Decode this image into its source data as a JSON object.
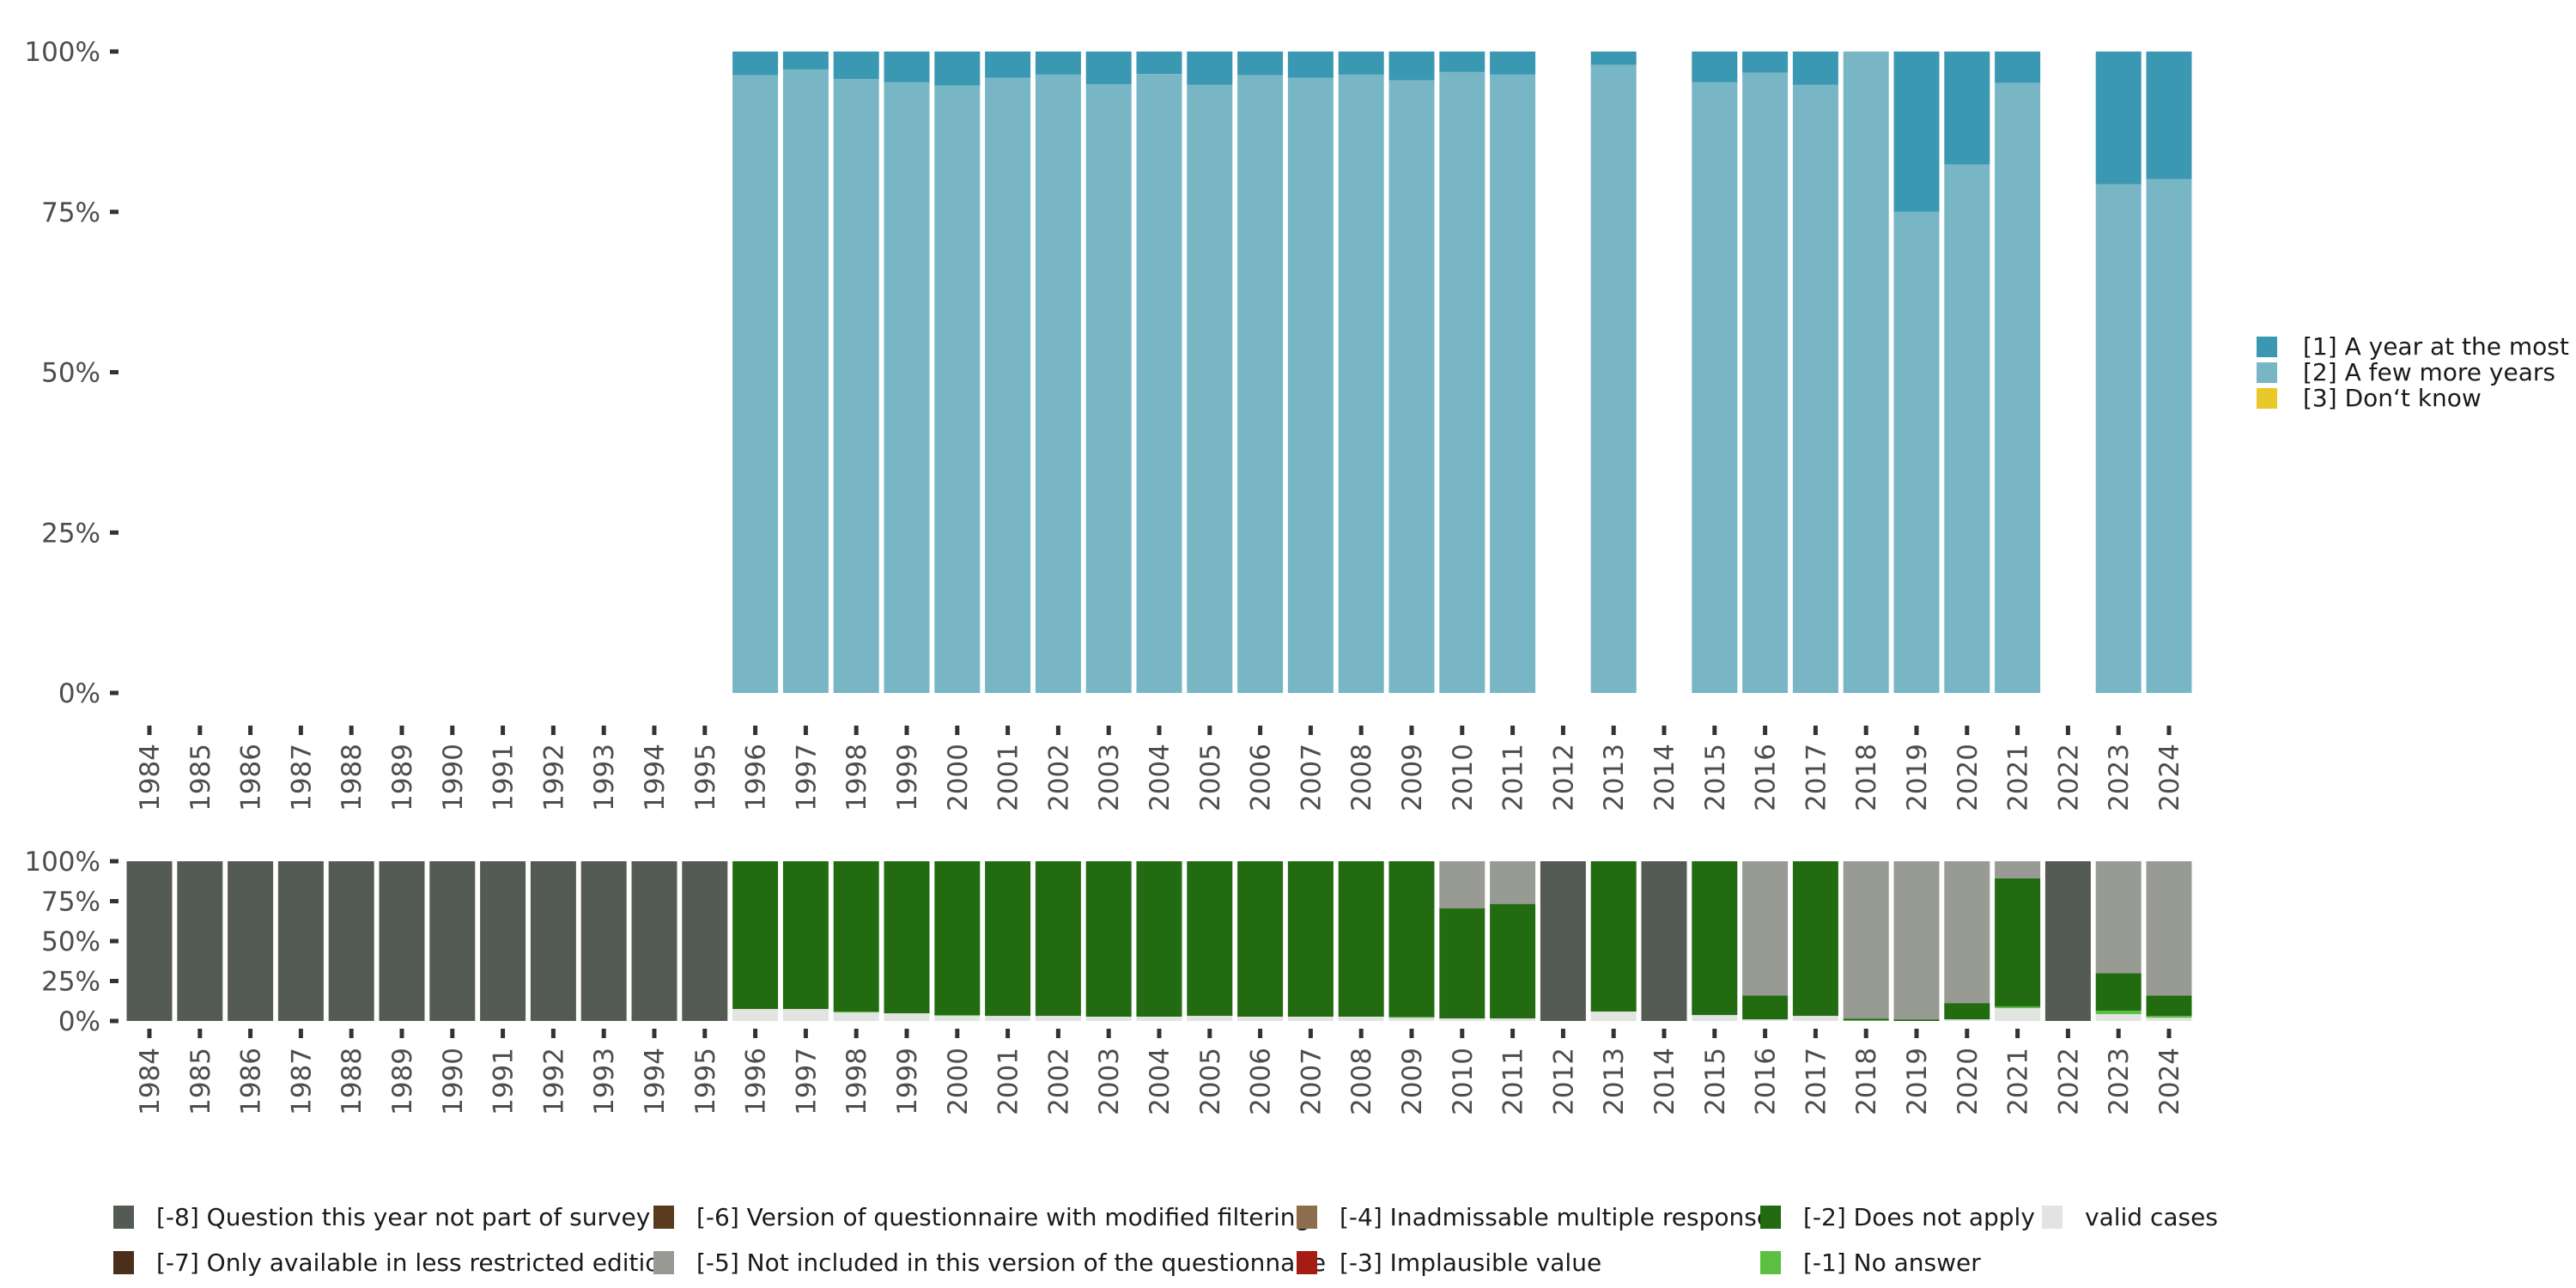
{
  "chart_data": [
    {
      "type": "bar",
      "stacked": true,
      "percent": true,
      "title": "",
      "xlabel": "",
      "ylabel": "",
      "ylim": [
        0,
        100
      ],
      "yticks": [
        "0%",
        "25%",
        "50%",
        "75%",
        "100%"
      ],
      "categories": [
        "1984",
        "1985",
        "1986",
        "1987",
        "1988",
        "1989",
        "1990",
        "1991",
        "1992",
        "1993",
        "1994",
        "1995",
        "1996",
        "1997",
        "1998",
        "1999",
        "2000",
        "2001",
        "2002",
        "2003",
        "2004",
        "2005",
        "2006",
        "2007",
        "2008",
        "2009",
        "2010",
        "2011",
        "2012",
        "2013",
        "2014",
        "2015",
        "2016",
        "2017",
        "2018",
        "2019",
        "2020",
        "2021",
        "2022",
        "2023",
        "2024"
      ],
      "legend_position": "right",
      "series": [
        {
          "name": "[2] A few more years",
          "color": "#79b6c5",
          "values": [
            null,
            null,
            null,
            null,
            null,
            null,
            null,
            null,
            null,
            null,
            null,
            null,
            96.3,
            97.2,
            95.7,
            95.2,
            94.7,
            95.9,
            96.4,
            94.9,
            96.5,
            94.8,
            96.3,
            95.9,
            96.4,
            95.5,
            96.8,
            96.4,
            null,
            97.9,
            null,
            95.2,
            96.7,
            94.8,
            100,
            75.0,
            82.4,
            95.1,
            null,
            79.3,
            80.1
          ]
        },
        {
          "name": "[1] A year at the most",
          "color": "#3b98b2",
          "values": [
            null,
            null,
            null,
            null,
            null,
            null,
            null,
            null,
            null,
            null,
            null,
            null,
            3.7,
            2.8,
            4.3,
            4.8,
            5.3,
            4.1,
            3.6,
            5.1,
            3.5,
            5.2,
            3.7,
            4.1,
            3.6,
            4.5,
            3.2,
            3.6,
            null,
            2.1,
            null,
            4.8,
            3.3,
            5.2,
            0,
            25.0,
            17.6,
            4.9,
            null,
            20.7,
            19.9
          ]
        },
        {
          "name": "[3] Don't know",
          "color": "#e9c82a",
          "values": [
            null,
            null,
            null,
            null,
            null,
            null,
            null,
            null,
            null,
            null,
            null,
            null,
            0,
            0,
            0,
            0,
            0,
            0,
            0,
            0,
            0,
            0,
            0,
            0,
            0,
            0,
            0,
            0,
            null,
            0,
            null,
            0,
            0,
            0,
            0,
            0,
            0,
            0,
            null,
            0,
            0
          ]
        }
      ]
    },
    {
      "type": "bar",
      "stacked": true,
      "percent": true,
      "title": "",
      "xlabel": "",
      "ylabel": "",
      "ylim": [
        0,
        100
      ],
      "yticks": [
        "0%",
        "25%",
        "50%",
        "75%",
        "100%"
      ],
      "categories": [
        "1984",
        "1985",
        "1986",
        "1987",
        "1988",
        "1989",
        "1990",
        "1991",
        "1992",
        "1993",
        "1994",
        "1995",
        "1996",
        "1997",
        "1998",
        "1999",
        "2000",
        "2001",
        "2002",
        "2003",
        "2004",
        "2005",
        "2006",
        "2007",
        "2008",
        "2009",
        "2010",
        "2011",
        "2012",
        "2013",
        "2014",
        "2015",
        "2016",
        "2017",
        "2018",
        "2019",
        "2020",
        "2021",
        "2022",
        "2023",
        "2024"
      ],
      "legend_position": "bottom",
      "series": [
        {
          "name": "valid cases",
          "color": "#e1e4e0",
          "values": [
            0,
            0,
            0,
            0,
            0,
            0,
            0,
            0,
            0,
            0,
            0,
            0,
            7.5,
            7.5,
            5.3,
            4.8,
            3.2,
            3.2,
            3.2,
            2.7,
            2.7,
            3.2,
            2.7,
            2.7,
            2.7,
            2.0,
            1.6,
            1.6,
            0,
            5.9,
            0,
            3.7,
            1.0,
            3.2,
            0,
            0,
            1.0,
            8.0,
            0,
            4.3,
            2.0
          ]
        },
        {
          "name": "[-1] No answer",
          "color": "#5bbf41",
          "values": [
            0,
            0,
            0,
            0,
            0,
            0,
            0,
            0,
            0,
            0,
            0,
            0,
            0,
            0,
            0.5,
            0,
            0.5,
            0,
            0,
            0,
            0,
            0,
            0,
            0,
            0,
            0.5,
            0,
            0,
            0,
            0,
            0,
            0,
            0,
            0,
            0.5,
            0,
            0,
            1.0,
            0,
            2.1,
            1.1
          ]
        },
        {
          "name": "[-2] Does not apply",
          "color": "#226b11",
          "values": [
            0,
            0,
            0,
            0,
            0,
            0,
            0,
            0,
            0,
            0,
            0,
            0,
            92.5,
            92.5,
            94.2,
            95.2,
            96.3,
            96.8,
            96.8,
            97.3,
            97.3,
            96.8,
            97.3,
            97.3,
            97.3,
            97.5,
            69.0,
            71.7,
            0,
            94.1,
            0,
            96.3,
            15.0,
            96.8,
            1.0,
            1.0,
            10.2,
            80.3,
            0,
            23.5,
            12.8
          ]
        },
        {
          "name": "[-3] Implausible value",
          "color": "#a51c15",
          "values": []
        },
        {
          "name": "[-4] Inadmissable multiple response",
          "color": "#8d6d4e",
          "values": []
        },
        {
          "name": "[-5] Not included in this version of the questionnaire",
          "color": "#989b94",
          "values": [
            0,
            0,
            0,
            0,
            0,
            0,
            0,
            0,
            0,
            0,
            0,
            0,
            0,
            0,
            0,
            0,
            0,
            0,
            0,
            0,
            0,
            0,
            0,
            0,
            0,
            0,
            29.4,
            26.7,
            0,
            0,
            0,
            0,
            84.0,
            0,
            98.5,
            99.0,
            88.8,
            10.7,
            0,
            70.1,
            84.1
          ]
        },
        {
          "name": "[-6] Version of questionnaire with modified filtering",
          "color": "#5a3a1c",
          "values": []
        },
        {
          "name": "[-7] Only available in less restricted edition",
          "color": "#4b2f1a",
          "values": []
        },
        {
          "name": "[-8] Question this year not part of survey",
          "color": "#545b55",
          "values": [
            100,
            100,
            100,
            100,
            100,
            100,
            100,
            100,
            100,
            100,
            100,
            100,
            0,
            0,
            0,
            0,
            0,
            0,
            0,
            0,
            0,
            0,
            0,
            0,
            0,
            0,
            0,
            0,
            100,
            0,
            100,
            0,
            0,
            0,
            0,
            0,
            0,
            0,
            100,
            0,
            0
          ]
        }
      ]
    }
  ],
  "legends": {
    "top": [
      {
        "label": "[1] A year at the most",
        "color": "#3b98b2"
      },
      {
        "label": "[2] A few more years",
        "color": "#79b6c5"
      },
      {
        "label": "[3] Don‘t know",
        "color": "#e9c82a"
      }
    ],
    "bottom": [
      {
        "label": "[-8] Question this year not part of survey",
        "color": "#545b55"
      },
      {
        "label": "[-7] Only available in less restricted edition",
        "color": "#4b2f1a"
      },
      {
        "label": "[-6] Version of questionnaire with modified filtering",
        "color": "#5a3a1c"
      },
      {
        "label": "[-5] Not included in this version of the questionnaire",
        "color": "#989b94"
      },
      {
        "label": "[-4] Inadmissable multiple response",
        "color": "#8d6d4e"
      },
      {
        "label": "[-3] Implausible value",
        "color": "#a51c15"
      },
      {
        "label": "[-2] Does not apply",
        "color": "#226b11"
      },
      {
        "label": "[-1] No answer",
        "color": "#5bbf41"
      },
      {
        "label": "valid cases",
        "color": "#e1e4e0"
      }
    ]
  }
}
